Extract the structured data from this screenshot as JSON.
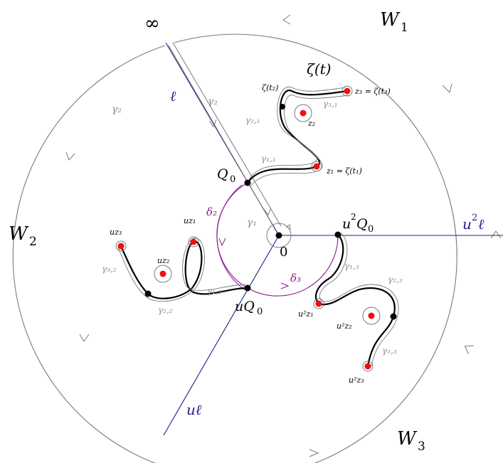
{
  "labels": {
    "infinity": "∞",
    "W1": "W",
    "W1_sub": "1",
    "W2": "W",
    "W2_sub": "2",
    "W3": "W",
    "W3_sub": "3",
    "ell": "ℓ",
    "u_ell": "uℓ",
    "u2_ell_u": "u",
    "u2_ell_exp": "2",
    "u2_ell_l": "ℓ",
    "zeta_t": "ζ(t)",
    "zeta_t2": "ζ(t₂)",
    "z3_eq": "z₃ = ζ(t₃)",
    "z1_eq": "z₁ = ζ(t₁)",
    "z2": "z₂",
    "Q0": "Q",
    "Q0_sub": "0",
    "uQ0": "uQ",
    "uQ0_sub": "0",
    "u2Q0_u": "u",
    "u2Q0_exp": "2",
    "u2Q0_Q": "Q",
    "u2Q0_sub": "0",
    "zero": "0",
    "delta2": "δ₂",
    "delta3": "δ₃",
    "gamma1": "γ₁",
    "gamma2_outer": "γ₂",
    "gamma2_inner": "γ₂",
    "gamma11": "γ₁,₁",
    "gamma21": "γ₂,₁",
    "gamma31": "γ₃,₁",
    "gamma12": "γ₁,₂",
    "gamma22": "γ₂,₂",
    "gamma32": "γ₃,₂",
    "gamma13": "γ₁,₃",
    "gamma23": "γ₂,₃",
    "gamma33": "γ₃,₃",
    "uz1": "uz₁",
    "uz2": "uz₂",
    "uz3": "uz₃",
    "u2z1": "u²z₁",
    "u2z2": "u²z₂",
    "u2z3": "u²z₃"
  },
  "colors": {
    "circle": "#7a7a7a",
    "navy": "#1f1f8a",
    "purple": "#8b1a8b",
    "gray_label": "#8c8c8c",
    "red": "#ee1111",
    "black": "#000000"
  }
}
